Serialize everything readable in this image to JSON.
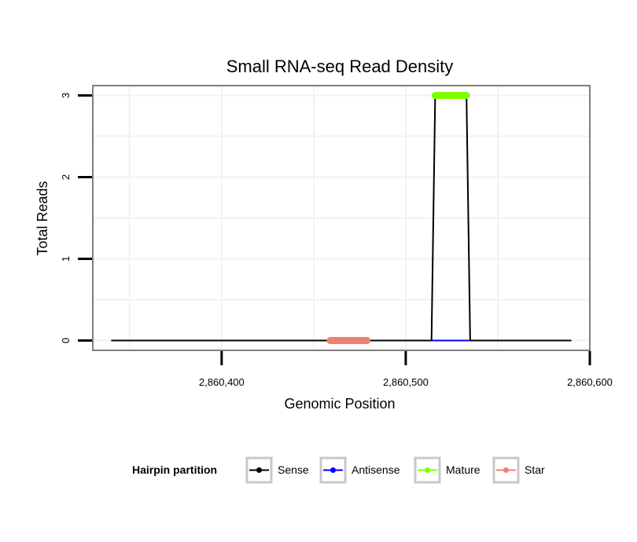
{
  "chart_data": {
    "type": "line",
    "title": "Small RNA-seq Read Density",
    "xlabel": "Genomic Position",
    "ylabel": "Total Reads",
    "xlim": [
      2860330,
      2860600
    ],
    "ylim": [
      -0.12,
      3.12
    ],
    "x_ticks": [
      2860400,
      2860500,
      2860600
    ],
    "x_tick_labels": [
      "2,860,400",
      "2,860,500",
      "2,860,600"
    ],
    "y_ticks": [
      0,
      1,
      2,
      3
    ],
    "y_tick_labels": [
      "0",
      "1",
      "2",
      "3"
    ],
    "grid": true,
    "legend": {
      "title": "Hairpin partition",
      "position": "bottom",
      "entries": [
        {
          "label": "Sense",
          "color": "#000000"
        },
        {
          "label": "Antisense",
          "color": "#0000ff"
        },
        {
          "label": "Mature",
          "color": "#7fff00"
        },
        {
          "label": "Star",
          "color": "#f08070"
        }
      ]
    },
    "series": [
      {
        "name": "Sense",
        "color": "#000000",
        "x": [
          2860340,
          2860514,
          2860516,
          2860533,
          2860535,
          2860590
        ],
        "y": [
          0,
          0,
          3,
          3,
          0,
          0
        ]
      },
      {
        "name": "Antisense",
        "color": "#0000ff",
        "x": [
          2860514,
          2860535
        ],
        "y": [
          0,
          0
        ]
      },
      {
        "name": "Mature",
        "color": "#7fff00",
        "x": [
          2860516,
          2860533
        ],
        "y": [
          3,
          3
        ]
      },
      {
        "name": "Star",
        "color": "#f08070",
        "x": [
          2860459,
          2860479
        ],
        "y": [
          0,
          0
        ]
      }
    ]
  }
}
